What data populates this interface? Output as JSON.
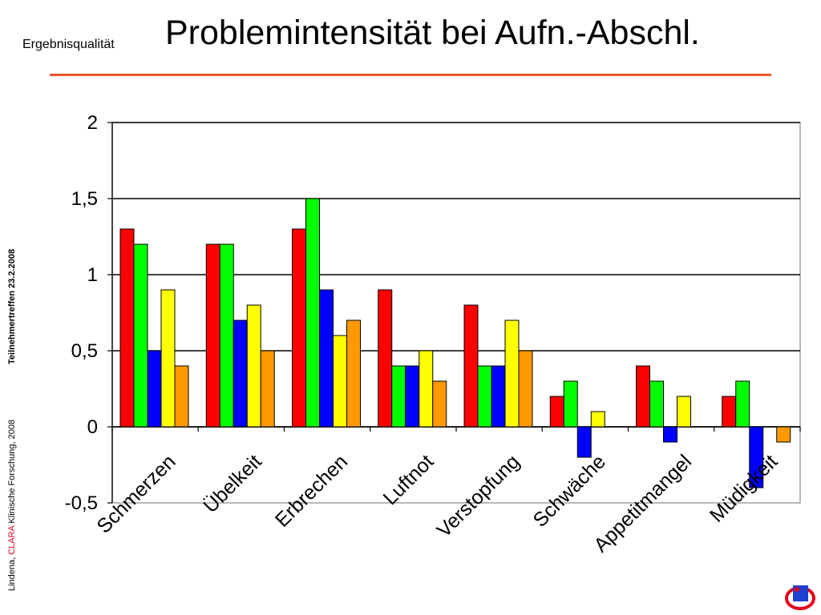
{
  "header": {
    "section_label": "Ergebnisqualität",
    "title": "Problemintensität bei Aufn.-Abschl."
  },
  "sidebar": {
    "event": "Teilnehmertreffen 23.2.2008",
    "credit_prefix": "Lindena,",
    "credit_brand": "CLARA",
    "credit_suffix": "Klinische Forschung, 2008"
  },
  "colors": {
    "title_rule": "#e8572a",
    "brand": "#e2001a"
  },
  "chart_data": {
    "type": "bar",
    "title": "",
    "xlabel": "",
    "ylabel": "",
    "ylim": [
      -0.5,
      2
    ],
    "yticks": [
      2,
      1.5,
      1,
      0.5,
      0,
      -0.5
    ],
    "ytick_labels": [
      "2",
      "1,5",
      "1",
      "0,5",
      "0",
      "-0,5"
    ],
    "grid": true,
    "legend": "none",
    "categories": [
      "Schmerzen",
      "Übelkeit",
      "Erbrechen",
      "Luftnot",
      "Verstopfung",
      "Schwäche",
      "Appetitmangel",
      "Müdigkeit"
    ],
    "series": [
      {
        "color": "#ff0000",
        "values": [
          1.3,
          1.2,
          1.3,
          0.9,
          0.8,
          0.2,
          0.4,
          0.2
        ]
      },
      {
        "color": "#00ff00",
        "values": [
          1.2,
          1.2,
          1.5,
          0.4,
          0.4,
          0.3,
          0.3,
          0.3
        ]
      },
      {
        "color": "#0000ff",
        "values": [
          0.5,
          0.7,
          0.9,
          0.4,
          0.4,
          -0.2,
          -0.1,
          -0.4
        ]
      },
      {
        "color": "#ffff00",
        "values": [
          0.9,
          0.8,
          0.6,
          0.5,
          0.7,
          0.1,
          0.2,
          0
        ]
      },
      {
        "color": "#ff9900",
        "values": [
          0.4,
          0.5,
          0.7,
          0.3,
          0.5,
          0,
          0,
          -0.1
        ]
      }
    ]
  }
}
